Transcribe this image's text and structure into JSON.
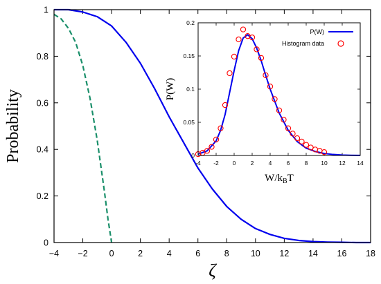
{
  "chart_data": [
    {
      "type": "line",
      "xlabel": "ζ",
      "ylabel": "Probability",
      "xlim": [
        -4,
        18
      ],
      "ylim": [
        0,
        1
      ],
      "xticks": [
        -4,
        -2,
        0,
        2,
        4,
        6,
        8,
        10,
        12,
        14,
        16,
        18
      ],
      "yticks": [
        0,
        0.2,
        0.4,
        0.6,
        0.8,
        1
      ],
      "xtick_labels": [
        "−4",
        "−2",
        "0",
        "2",
        "4",
        "6",
        "8",
        "10",
        "12",
        "14",
        "16",
        "18"
      ],
      "ytick_labels": [
        "0",
        "0.2",
        "0.4",
        "0.6",
        "0.8",
        "1"
      ],
      "series": [
        {
          "style": "solid",
          "color": "#0000ee",
          "x": [
            -4,
            -3,
            -2,
            -1,
            0,
            1,
            2,
            3,
            4,
            5,
            6,
            7,
            8,
            9,
            10,
            11,
            12,
            13,
            14,
            15,
            16,
            17,
            18
          ],
          "y": [
            1.0,
            1.0,
            0.99,
            0.97,
            0.93,
            0.86,
            0.77,
            0.66,
            0.54,
            0.43,
            0.32,
            0.23,
            0.155,
            0.1,
            0.06,
            0.035,
            0.018,
            0.009,
            0.004,
            0.002,
            0.001,
            0.0,
            0.0
          ]
        },
        {
          "style": "dashed",
          "color": "#1a8f6a",
          "x": [
            -4,
            -3.5,
            -3,
            -2.5,
            -2,
            -1.5,
            -1,
            -0.5,
            -0.25,
            0
          ],
          "y": [
            0.98,
            0.96,
            0.92,
            0.86,
            0.76,
            0.62,
            0.44,
            0.22,
            0.1,
            0.0
          ]
        }
      ]
    },
    {
      "type": "line",
      "xlabel": "W/kBT",
      "xlabel_main": "W/k",
      "xlabel_sub": "B",
      "xlabel_tail": "T",
      "ylabel": "P(W)",
      "xlim": [
        -4,
        14
      ],
      "ylim": [
        0,
        0.2
      ],
      "xticks": [
        -4,
        -2,
        0,
        2,
        4,
        6,
        8,
        10,
        12,
        14
      ],
      "yticks": [
        0,
        0.05,
        0.1,
        0.15,
        0.2
      ],
      "xtick_labels": [
        "-4",
        "-2",
        "0",
        "2",
        "4",
        "6",
        "8",
        "10",
        "12",
        "14"
      ],
      "ytick_labels": [
        "0",
        "0.05",
        "0.1",
        "0.15",
        "0.2"
      ],
      "legend_position": "top-right",
      "series": [
        {
          "name": "P(W)",
          "style": "solid",
          "color": "#0000ee",
          "x": [
            -4,
            -3,
            -2,
            -1.5,
            -1,
            -0.5,
            0,
            0.5,
            1,
            1.5,
            2,
            2.5,
            3,
            3.5,
            4,
            5,
            6,
            7,
            8,
            9,
            10,
            11,
            12,
            13,
            14
          ],
          "y": [
            0.002,
            0.007,
            0.022,
            0.038,
            0.062,
            0.095,
            0.128,
            0.158,
            0.177,
            0.182,
            0.176,
            0.162,
            0.143,
            0.121,
            0.1,
            0.064,
            0.038,
            0.021,
            0.011,
            0.006,
            0.003,
            0.0015,
            0.0007,
            0.0003,
            0.0001
          ]
        },
        {
          "name": "Histogram data",
          "style": "markers",
          "color": "#ff0000",
          "x": [
            -4,
            -3.5,
            -3,
            -2.5,
            -2,
            -1.5,
            -1,
            -0.5,
            0,
            0.5,
            1,
            1.5,
            2,
            2.5,
            3,
            3.5,
            4,
            4.5,
            5,
            5.5,
            6,
            6.5,
            7,
            7.5,
            8,
            8.5,
            9,
            9.5,
            10
          ],
          "y": [
            0.002,
            0.004,
            0.007,
            0.013,
            0.024,
            0.041,
            0.076,
            0.124,
            0.149,
            0.175,
            0.19,
            0.18,
            0.178,
            0.16,
            0.147,
            0.121,
            0.104,
            0.085,
            0.068,
            0.054,
            0.041,
            0.033,
            0.026,
            0.021,
            0.016,
            0.012,
            0.009,
            0.007,
            0.005
          ]
        }
      ]
    }
  ]
}
